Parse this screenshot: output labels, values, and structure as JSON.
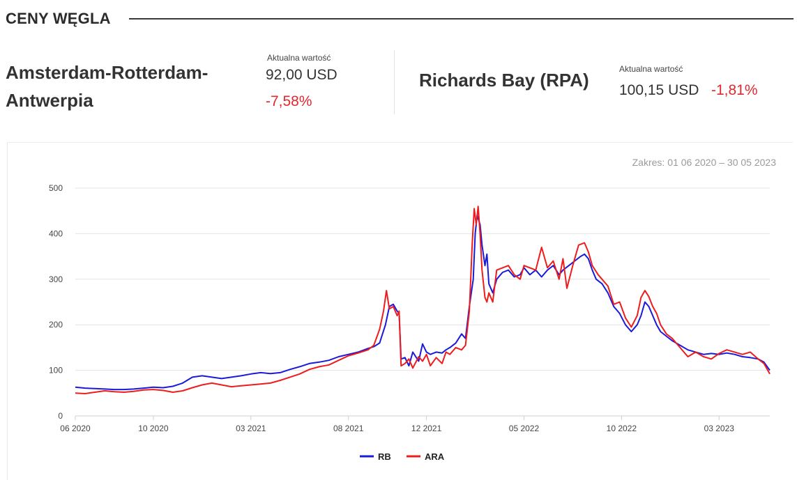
{
  "header": {
    "title": "CENY WĘGLA"
  },
  "ara": {
    "name_line1": "Amsterdam-Rotterdam-",
    "name_line2": "Antwerpia",
    "caption": "Aktualna wartość",
    "value": "92,00 USD",
    "change": "-7,58%"
  },
  "rb": {
    "name": "Richards Bay (RPA)",
    "caption": "Aktualna wartość",
    "value": "100,15 USD",
    "change": "-1,81%"
  },
  "range": {
    "label": "Zakres:",
    "value": "01 06 2020 – 30 05 2023"
  },
  "colors": {
    "rb": "#1a1adb",
    "ara": "#ee1c1c",
    "negative": "#e0282e"
  },
  "chart_data": {
    "type": "line",
    "xlabel": "",
    "ylabel": "",
    "ylim": [
      0,
      500
    ],
    "y_ticks": [
      0,
      100,
      200,
      300,
      400,
      500
    ],
    "x_ticks": [
      {
        "t": 0,
        "label": "06 2020"
      },
      {
        "t": 4,
        "label": "10 2020"
      },
      {
        "t": 9,
        "label": "03 2021"
      },
      {
        "t": 14,
        "label": "08 2021"
      },
      {
        "t": 18,
        "label": "12 2021"
      },
      {
        "t": 23,
        "label": "05 2022"
      },
      {
        "t": 28,
        "label": "10 2022"
      },
      {
        "t": 33,
        "label": "03 2023"
      }
    ],
    "grid": true,
    "legend": "bottom-center",
    "series": [
      {
        "name": "RB",
        "points": [
          [
            0,
            63
          ],
          [
            0.5,
            61
          ],
          [
            1,
            60
          ],
          [
            1.5,
            59
          ],
          [
            2,
            58
          ],
          [
            2.5,
            58
          ],
          [
            3,
            59
          ],
          [
            3.5,
            61
          ],
          [
            4,
            63
          ],
          [
            4.5,
            62
          ],
          [
            5,
            65
          ],
          [
            5.5,
            72
          ],
          [
            6,
            85
          ],
          [
            6.5,
            88
          ],
          [
            7,
            85
          ],
          [
            7.5,
            82
          ],
          [
            8,
            85
          ],
          [
            8.5,
            88
          ],
          [
            9,
            92
          ],
          [
            9.5,
            95
          ],
          [
            10,
            93
          ],
          [
            10.5,
            95
          ],
          [
            11,
            102
          ],
          [
            11.5,
            108
          ],
          [
            12,
            115
          ],
          [
            12.5,
            118
          ],
          [
            13,
            122
          ],
          [
            13.5,
            130
          ],
          [
            14,
            135
          ],
          [
            14.5,
            140
          ],
          [
            15,
            148
          ],
          [
            15.3,
            152
          ],
          [
            15.6,
            160
          ],
          [
            15.9,
            200
          ],
          [
            16.1,
            240
          ],
          [
            16.3,
            245
          ],
          [
            16.5,
            230
          ],
          [
            16.6,
            225
          ],
          [
            16.7,
            125
          ],
          [
            16.9,
            128
          ],
          [
            17.1,
            110
          ],
          [
            17.3,
            140
          ],
          [
            17.6,
            120
          ],
          [
            17.8,
            158
          ],
          [
            18,
            140
          ],
          [
            18.2,
            135
          ],
          [
            18.5,
            140
          ],
          [
            18.8,
            138
          ],
          [
            19,
            145
          ],
          [
            19.2,
            150
          ],
          [
            19.5,
            160
          ],
          [
            19.8,
            180
          ],
          [
            20,
            170
          ],
          [
            20.2,
            240
          ],
          [
            20.4,
            300
          ],
          [
            20.5,
            400
          ],
          [
            20.6,
            440
          ],
          [
            20.75,
            420
          ],
          [
            20.85,
            375
          ],
          [
            21,
            330
          ],
          [
            21.1,
            355
          ],
          [
            21.2,
            290
          ],
          [
            21.4,
            270
          ],
          [
            21.6,
            300
          ],
          [
            21.9,
            315
          ],
          [
            22.2,
            320
          ],
          [
            22.5,
            305
          ],
          [
            22.8,
            310
          ],
          [
            23,
            325
          ],
          [
            23.3,
            310
          ],
          [
            23.6,
            320
          ],
          [
            23.9,
            305
          ],
          [
            24.2,
            320
          ],
          [
            24.5,
            330
          ],
          [
            24.8,
            310
          ],
          [
            25,
            320
          ],
          [
            25.3,
            330
          ],
          [
            25.6,
            340
          ],
          [
            25.9,
            350
          ],
          [
            26.1,
            355
          ],
          [
            26.3,
            345
          ],
          [
            26.5,
            320
          ],
          [
            26.7,
            300
          ],
          [
            27,
            290
          ],
          [
            27.3,
            270
          ],
          [
            27.6,
            240
          ],
          [
            27.9,
            225
          ],
          [
            28.2,
            200
          ],
          [
            28.5,
            185
          ],
          [
            28.8,
            200
          ],
          [
            29,
            220
          ],
          [
            29.2,
            250
          ],
          [
            29.4,
            240
          ],
          [
            29.6,
            220
          ],
          [
            29.8,
            200
          ],
          [
            30,
            185
          ],
          [
            30.3,
            175
          ],
          [
            30.6,
            165
          ],
          [
            31,
            155
          ],
          [
            31.4,
            145
          ],
          [
            31.8,
            140
          ],
          [
            32.2,
            135
          ],
          [
            32.6,
            137
          ],
          [
            33,
            135
          ],
          [
            33.4,
            138
          ],
          [
            33.8,
            135
          ],
          [
            34.2,
            130
          ],
          [
            34.6,
            128
          ],
          [
            35,
            125
          ],
          [
            35.3,
            118
          ],
          [
            35.6,
            100
          ]
        ]
      },
      {
        "name": "ARA",
        "points": [
          [
            0,
            50
          ],
          [
            0.5,
            49
          ],
          [
            1,
            52
          ],
          [
            1.5,
            55
          ],
          [
            2,
            53
          ],
          [
            2.5,
            52
          ],
          [
            3,
            54
          ],
          [
            3.5,
            57
          ],
          [
            4,
            58
          ],
          [
            4.5,
            56
          ],
          [
            5,
            52
          ],
          [
            5.5,
            55
          ],
          [
            6,
            62
          ],
          [
            6.5,
            68
          ],
          [
            7,
            72
          ],
          [
            7.5,
            68
          ],
          [
            8,
            64
          ],
          [
            8.5,
            66
          ],
          [
            9,
            68
          ],
          [
            9.5,
            70
          ],
          [
            10,
            72
          ],
          [
            10.5,
            78
          ],
          [
            11,
            85
          ],
          [
            11.5,
            92
          ],
          [
            12,
            102
          ],
          [
            12.5,
            108
          ],
          [
            13,
            112
          ],
          [
            13.5,
            122
          ],
          [
            14,
            132
          ],
          [
            14.5,
            138
          ],
          [
            15,
            145
          ],
          [
            15.3,
            155
          ],
          [
            15.6,
            190
          ],
          [
            15.8,
            230
          ],
          [
            15.95,
            275
          ],
          [
            16.1,
            235
          ],
          [
            16.3,
            240
          ],
          [
            16.5,
            220
          ],
          [
            16.6,
            230
          ],
          [
            16.7,
            110
          ],
          [
            16.9,
            115
          ],
          [
            17.1,
            125
          ],
          [
            17.3,
            105
          ],
          [
            17.6,
            130
          ],
          [
            17.8,
            120
          ],
          [
            18,
            135
          ],
          [
            18.2,
            110
          ],
          [
            18.5,
            128
          ],
          [
            18.8,
            115
          ],
          [
            19,
            140
          ],
          [
            19.2,
            135
          ],
          [
            19.5,
            150
          ],
          [
            19.8,
            145
          ],
          [
            20,
            155
          ],
          [
            20.2,
            230
          ],
          [
            20.35,
            380
          ],
          [
            20.45,
            455
          ],
          [
            20.55,
            420
          ],
          [
            20.65,
            460
          ],
          [
            20.75,
            400
          ],
          [
            20.85,
            320
          ],
          [
            21,
            260
          ],
          [
            21.1,
            250
          ],
          [
            21.2,
            270
          ],
          [
            21.4,
            250
          ],
          [
            21.6,
            320
          ],
          [
            21.9,
            325
          ],
          [
            22.2,
            330
          ],
          [
            22.5,
            310
          ],
          [
            22.8,
            300
          ],
          [
            23,
            330
          ],
          [
            23.3,
            325
          ],
          [
            23.6,
            320
          ],
          [
            23.9,
            370
          ],
          [
            24.2,
            325
          ],
          [
            24.5,
            340
          ],
          [
            24.8,
            300
          ],
          [
            25,
            345
          ],
          [
            25.2,
            280
          ],
          [
            25.5,
            330
          ],
          [
            25.8,
            375
          ],
          [
            26.1,
            380
          ],
          [
            26.3,
            360
          ],
          [
            26.5,
            330
          ],
          [
            26.8,
            310
          ],
          [
            27,
            300
          ],
          [
            27.3,
            285
          ],
          [
            27.6,
            245
          ],
          [
            27.9,
            250
          ],
          [
            28.2,
            215
          ],
          [
            28.5,
            195
          ],
          [
            28.8,
            220
          ],
          [
            29,
            260
          ],
          [
            29.2,
            275
          ],
          [
            29.4,
            262
          ],
          [
            29.6,
            240
          ],
          [
            29.8,
            225
          ],
          [
            30,
            200
          ],
          [
            30.3,
            180
          ],
          [
            30.6,
            170
          ],
          [
            31,
            150
          ],
          [
            31.4,
            130
          ],
          [
            31.8,
            140
          ],
          [
            32.2,
            130
          ],
          [
            32.6,
            125
          ],
          [
            33,
            137
          ],
          [
            33.4,
            145
          ],
          [
            33.8,
            140
          ],
          [
            34.2,
            135
          ],
          [
            34.6,
            140
          ],
          [
            35,
            125
          ],
          [
            35.3,
            115
          ],
          [
            35.6,
            92
          ]
        ]
      }
    ]
  }
}
